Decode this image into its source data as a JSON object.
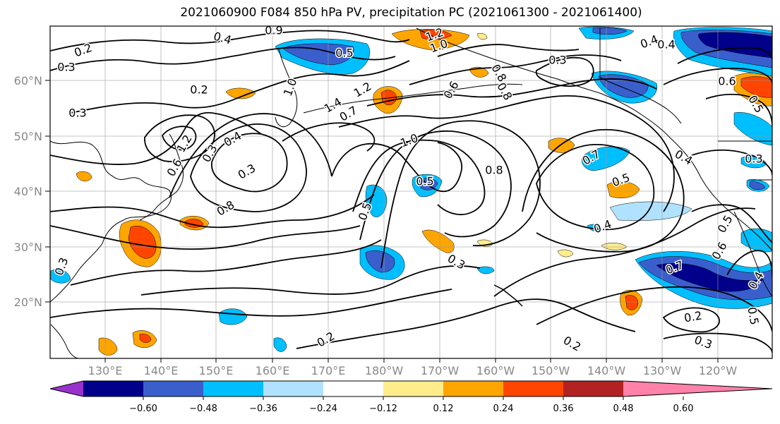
{
  "title": "2021060900 F084 850 hPa PV, precipitation PC (2021061300 - 2021061400)",
  "lat_labels": [
    "60°N",
    "50°N",
    "40°N",
    "30°N",
    "20°N"
  ],
  "lon_labels": [
    "130°E",
    "140°E",
    "150°E",
    "160°E",
    "170°E",
    "180°W",
    "170°W",
    "160°W",
    "150°W",
    "140°W",
    "130°W",
    "120°W"
  ],
  "colorbar": {
    "ticks": [
      "−0.60",
      "−0.48",
      "−0.36",
      "−0.24",
      "−0.12",
      "0.12",
      "0.24",
      "0.36",
      "0.48",
      "0.60"
    ],
    "colors": [
      "#9932cc",
      "#00008b",
      "#3a5fcd",
      "#00bfff",
      "#b0e2ff",
      "#ffffff",
      "#ffec8b",
      "#ffa500",
      "#ff4500",
      "#b22222",
      "#ff82ab"
    ]
  },
  "shading": {
    "orange": "#ffa500",
    "red": "#ff4500",
    "yellow": "#ffec8b",
    "cyan": "#00bfff",
    "blue": "#3a5fcd",
    "navy": "#00008b",
    "lightblue": "#b0e2ff"
  },
  "contour_labels": [
    {
      "text": "0.2"
    },
    {
      "text": "0.4"
    },
    {
      "text": "0.9"
    },
    {
      "text": "1.2"
    },
    {
      "text": "1.0"
    },
    {
      "text": "0.5"
    },
    {
      "text": "0.3"
    },
    {
      "text": "0.4"
    },
    {
      "text": "0.2"
    },
    {
      "text": "1.0"
    },
    {
      "text": "0.8"
    },
    {
      "text": "1.2"
    },
    {
      "text": "1.4"
    },
    {
      "text": "0.6"
    },
    {
      "text": "0.3"
    },
    {
      "text": "1.2"
    },
    {
      "text": "0.6"
    },
    {
      "text": "0.7"
    },
    {
      "text": "0.4"
    },
    {
      "text": "1.0"
    },
    {
      "text": "0.8"
    },
    {
      "text": "0.3"
    },
    {
      "text": "0.5"
    },
    {
      "text": "0.3"
    },
    {
      "text": "0.8"
    },
    {
      "text": "0.7"
    },
    {
      "text": "0.5"
    },
    {
      "text": "0.4"
    },
    {
      "text": "0.4"
    },
    {
      "text": "0.3"
    },
    {
      "text": "0.8"
    },
    {
      "text": "0.5"
    },
    {
      "text": "0.6"
    },
    {
      "text": "0.5"
    },
    {
      "text": "0.3"
    },
    {
      "text": "0.7"
    },
    {
      "text": "0.4"
    },
    {
      "text": "0.2"
    },
    {
      "text": "0.2"
    },
    {
      "text": "0.3"
    },
    {
      "text": "0.5"
    },
    {
      "text": "0.3"
    },
    {
      "text": "0.2"
    },
    {
      "text": "0.4"
    },
    {
      "text": "0.6"
    },
    {
      "text": "0.3"
    },
    {
      "text": "0.5"
    }
  ]
}
